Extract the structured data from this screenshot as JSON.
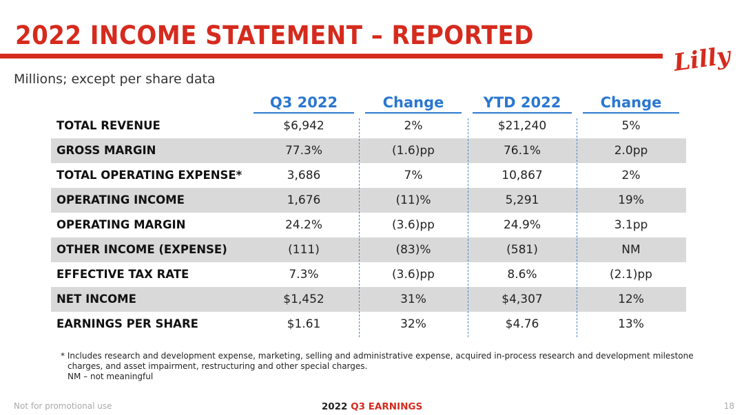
{
  "header": {
    "title": "2022 INCOME STATEMENT – REPORTED",
    "logo_text": "Lilly",
    "subtitle": "Millions; except per share data"
  },
  "table": {
    "columns": [
      "Q3 2022",
      "Change",
      "YTD 2022",
      "Change"
    ],
    "rows": [
      {
        "label": "TOTAL REVENUE",
        "q3": "$6,942",
        "q3_change": "2%",
        "ytd": "$21,240",
        "ytd_change": "5%",
        "shaded": false
      },
      {
        "label": "GROSS MARGIN",
        "q3": "77.3%",
        "q3_change": "(1.6)pp",
        "ytd": "76.1%",
        "ytd_change": "2.0pp",
        "shaded": true
      },
      {
        "label": "TOTAL OPERATING EXPENSE*",
        "q3": "3,686",
        "q3_change": "7%",
        "ytd": "10,867",
        "ytd_change": "2%",
        "shaded": false
      },
      {
        "label": "OPERATING INCOME",
        "q3": "1,676",
        "q3_change": "(11)%",
        "ytd": "5,291",
        "ytd_change": "19%",
        "shaded": true
      },
      {
        "label": "OPERATING MARGIN",
        "q3": "24.2%",
        "q3_change": "(3.6)pp",
        "ytd": "24.9%",
        "ytd_change": "3.1pp",
        "shaded": false
      },
      {
        "label": "OTHER INCOME (EXPENSE)",
        "q3": "(111)",
        "q3_change": "(83)%",
        "ytd": "(581)",
        "ytd_change": "NM",
        "shaded": true
      },
      {
        "label": "EFFECTIVE TAX RATE",
        "q3": "7.3%",
        "q3_change": "(3.6)pp",
        "ytd": "8.6%",
        "ytd_change": "(2.1)pp",
        "shaded": false
      },
      {
        "label": "NET INCOME",
        "q3": "$1,452",
        "q3_change": "31%",
        "ytd": "$4,307",
        "ytd_change": "12%",
        "shaded": true
      },
      {
        "label": "EARNINGS PER SHARE",
        "q3": "$1.61",
        "q3_change": "32%",
        "ytd": "$4.76",
        "ytd_change": "13%",
        "shaded": false
      }
    ]
  },
  "footnote": {
    "line1": "* Includes research and development expense, marketing, selling and administrative expense, acquired in-process research and development milestone",
    "line2": "charges, and asset impairment, restructuring and other special charges.",
    "line3": "NM – not meaningful"
  },
  "footer": {
    "left": "Not for promotional use",
    "center_prefix": "2022",
    "center_accent": "Q3 EARNINGS",
    "page_number": "18"
  },
  "colors": {
    "brand_red": "#d52b1e",
    "header_blue": "#2a77d0",
    "row_shade": "#d9d9d9"
  }
}
